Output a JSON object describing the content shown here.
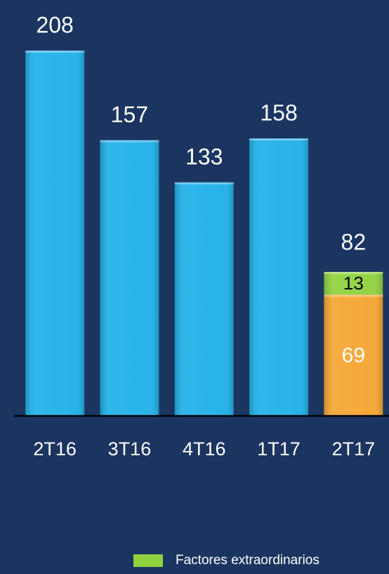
{
  "chart_data": {
    "type": "stacked-bar",
    "categories": [
      "2T16",
      "3T16",
      "4T16",
      "1T17",
      "2T17"
    ],
    "series": [
      {
        "color": "#1fb0e8",
        "values": [
          208,
          157,
          133,
          158,
          null
        ]
      },
      {
        "color": "#f5a531",
        "values": [
          null,
          null,
          null,
          null,
          69
        ]
      },
      {
        "name": "Factores extraordinarios",
        "color": "#8fd13f",
        "values": [
          null,
          null,
          null,
          null,
          13
        ]
      }
    ],
    "totals": [
      null,
      null,
      null,
      null,
      82
    ],
    "ylim": [
      0,
      208
    ],
    "legend": "bottom"
  }
}
